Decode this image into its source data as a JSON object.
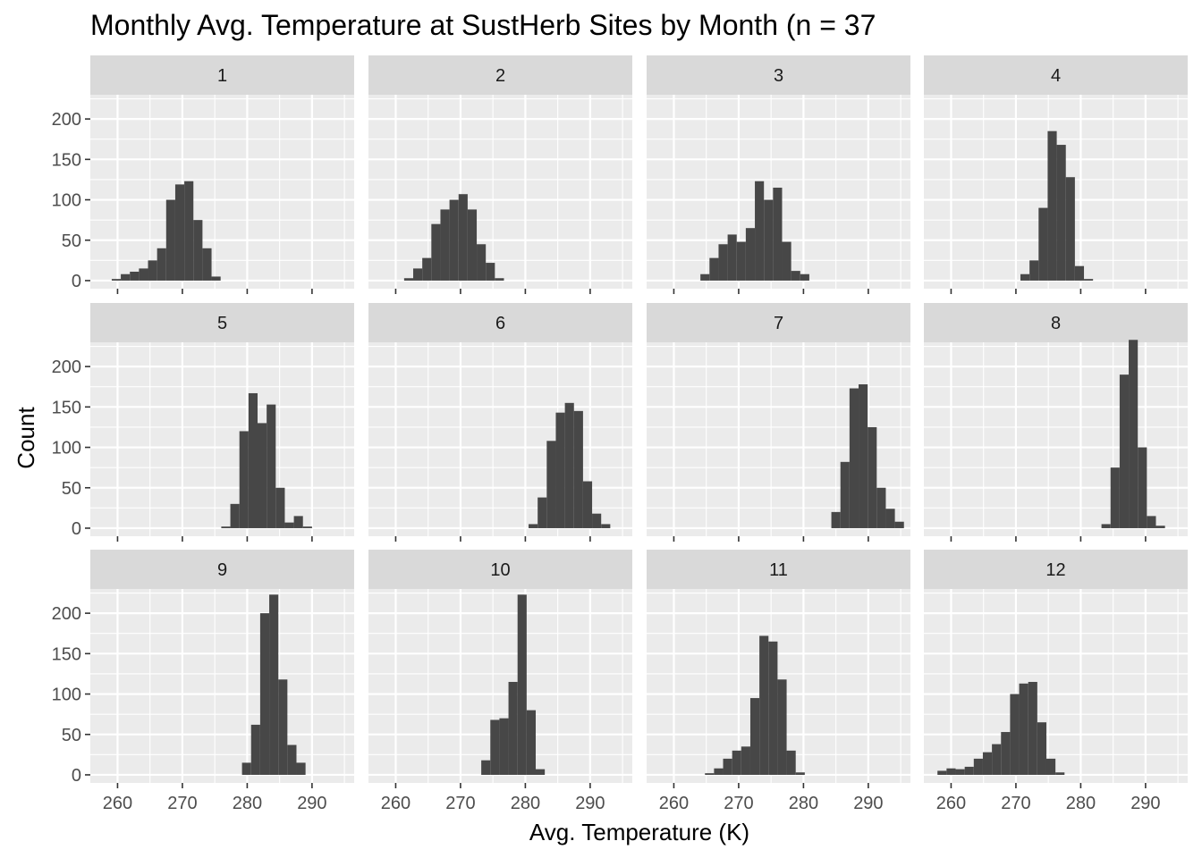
{
  "chart_data": {
    "type": "histogram",
    "title": "Monthly Avg. Temperature at SustHerb Sites by Month (n = 37",
    "xlabel": "Avg. Temperature (K)",
    "ylabel": "Count",
    "xlim": [
      255.8,
      296.5
    ],
    "ylim": [
      -10,
      230
    ],
    "x_ticks": [
      260,
      270,
      280,
      290
    ],
    "y_ticks": [
      0,
      50,
      100,
      150,
      200
    ],
    "bin_width": 1.4,
    "grid": true,
    "layout": "facet-wrap 3 rows x 4 columns",
    "colors": {
      "bar": "#474747",
      "panel_bg": "#ebebeb",
      "grid": "#ffffff",
      "strip_bg": "#d9d9d9"
    },
    "panels": [
      {
        "label": "1",
        "bins": [
          {
            "x": 259.8,
            "count": 2
          },
          {
            "x": 261.2,
            "count": 8
          },
          {
            "x": 262.6,
            "count": 11
          },
          {
            "x": 264.0,
            "count": 15
          },
          {
            "x": 265.4,
            "count": 25
          },
          {
            "x": 266.8,
            "count": 40
          },
          {
            "x": 268.2,
            "count": 100
          },
          {
            "x": 269.6,
            "count": 119
          },
          {
            "x": 271.0,
            "count": 123
          },
          {
            "x": 272.4,
            "count": 75
          },
          {
            "x": 273.8,
            "count": 40
          },
          {
            "x": 275.2,
            "count": 5
          }
        ]
      },
      {
        "label": "2",
        "bins": [
          {
            "x": 262.0,
            "count": 3
          },
          {
            "x": 263.4,
            "count": 15
          },
          {
            "x": 264.8,
            "count": 28
          },
          {
            "x": 266.2,
            "count": 70
          },
          {
            "x": 267.6,
            "count": 88
          },
          {
            "x": 269.0,
            "count": 100
          },
          {
            "x": 270.4,
            "count": 107
          },
          {
            "x": 271.8,
            "count": 88
          },
          {
            "x": 273.2,
            "count": 45
          },
          {
            "x": 274.6,
            "count": 22
          },
          {
            "x": 276.0,
            "count": 3
          }
        ]
      },
      {
        "label": "3",
        "bins": [
          {
            "x": 264.8,
            "count": 8
          },
          {
            "x": 266.2,
            "count": 28
          },
          {
            "x": 267.6,
            "count": 45
          },
          {
            "x": 269.0,
            "count": 57
          },
          {
            "x": 270.4,
            "count": 48
          },
          {
            "x": 271.8,
            "count": 65
          },
          {
            "x": 273.2,
            "count": 123
          },
          {
            "x": 274.6,
            "count": 100
          },
          {
            "x": 276.0,
            "count": 115
          },
          {
            "x": 277.4,
            "count": 48
          },
          {
            "x": 278.8,
            "count": 12
          },
          {
            "x": 280.2,
            "count": 8
          }
        ]
      },
      {
        "label": "4",
        "bins": [
          {
            "x": 271.4,
            "count": 8
          },
          {
            "x": 272.8,
            "count": 25
          },
          {
            "x": 274.2,
            "count": 90
          },
          {
            "x": 275.6,
            "count": 185
          },
          {
            "x": 277.0,
            "count": 168
          },
          {
            "x": 278.4,
            "count": 128
          },
          {
            "x": 279.8,
            "count": 18
          },
          {
            "x": 281.2,
            "count": 2
          }
        ]
      },
      {
        "label": "5",
        "bins": [
          {
            "x": 276.7,
            "count": 2
          },
          {
            "x": 278.1,
            "count": 30
          },
          {
            "x": 279.5,
            "count": 120
          },
          {
            "x": 280.9,
            "count": 167
          },
          {
            "x": 282.3,
            "count": 130
          },
          {
            "x": 283.7,
            "count": 153
          },
          {
            "x": 285.1,
            "count": 50
          },
          {
            "x": 286.5,
            "count": 7
          },
          {
            "x": 287.9,
            "count": 15
          },
          {
            "x": 289.3,
            "count": 2
          }
        ]
      },
      {
        "label": "6",
        "bins": [
          {
            "x": 281.2,
            "count": 5
          },
          {
            "x": 282.6,
            "count": 38
          },
          {
            "x": 284.0,
            "count": 108
          },
          {
            "x": 285.4,
            "count": 143
          },
          {
            "x": 286.8,
            "count": 155
          },
          {
            "x": 288.2,
            "count": 145
          },
          {
            "x": 289.6,
            "count": 58
          },
          {
            "x": 291.0,
            "count": 18
          },
          {
            "x": 292.4,
            "count": 5
          }
        ]
      },
      {
        "label": "7",
        "bins": [
          {
            "x": 285.0,
            "count": 20
          },
          {
            "x": 286.4,
            "count": 82
          },
          {
            "x": 287.8,
            "count": 173
          },
          {
            "x": 289.2,
            "count": 178
          },
          {
            "x": 290.6,
            "count": 125
          },
          {
            "x": 292.0,
            "count": 50
          },
          {
            "x": 293.4,
            "count": 24
          },
          {
            "x": 294.8,
            "count": 8
          }
        ]
      },
      {
        "label": "8",
        "bins": [
          {
            "x": 283.9,
            "count": 5
          },
          {
            "x": 285.3,
            "count": 75
          },
          {
            "x": 286.7,
            "count": 190
          },
          {
            "x": 288.1,
            "count": 233
          },
          {
            "x": 289.5,
            "count": 100
          },
          {
            "x": 290.9,
            "count": 15
          },
          {
            "x": 292.3,
            "count": 3
          }
        ]
      },
      {
        "label": "9",
        "bins": [
          {
            "x": 279.9,
            "count": 15
          },
          {
            "x": 281.3,
            "count": 62
          },
          {
            "x": 282.7,
            "count": 200
          },
          {
            "x": 284.1,
            "count": 223
          },
          {
            "x": 285.5,
            "count": 118
          },
          {
            "x": 286.9,
            "count": 37
          },
          {
            "x": 288.3,
            "count": 15
          }
        ]
      },
      {
        "label": "10",
        "bins": [
          {
            "x": 273.9,
            "count": 18
          },
          {
            "x": 275.3,
            "count": 68
          },
          {
            "x": 276.7,
            "count": 70
          },
          {
            "x": 278.1,
            "count": 115
          },
          {
            "x": 279.5,
            "count": 223
          },
          {
            "x": 280.9,
            "count": 80
          },
          {
            "x": 282.3,
            "count": 7
          }
        ]
      },
      {
        "label": "11",
        "bins": [
          {
            "x": 265.5,
            "count": 2
          },
          {
            "x": 266.9,
            "count": 8
          },
          {
            "x": 268.3,
            "count": 20
          },
          {
            "x": 269.7,
            "count": 30
          },
          {
            "x": 271.1,
            "count": 35
          },
          {
            "x": 272.5,
            "count": 95
          },
          {
            "x": 273.9,
            "count": 172
          },
          {
            "x": 275.3,
            "count": 165
          },
          {
            "x": 276.7,
            "count": 118
          },
          {
            "x": 278.1,
            "count": 30
          },
          {
            "x": 279.5,
            "count": 3
          }
        ]
      },
      {
        "label": "12",
        "bins": [
          {
            "x": 258.6,
            "count": 5
          },
          {
            "x": 260.0,
            "count": 8
          },
          {
            "x": 261.4,
            "count": 7
          },
          {
            "x": 262.8,
            "count": 10
          },
          {
            "x": 264.2,
            "count": 20
          },
          {
            "x": 265.6,
            "count": 28
          },
          {
            "x": 267.0,
            "count": 38
          },
          {
            "x": 268.4,
            "count": 53
          },
          {
            "x": 269.8,
            "count": 100
          },
          {
            "x": 271.2,
            "count": 113
          },
          {
            "x": 272.6,
            "count": 115
          },
          {
            "x": 274.0,
            "count": 65
          },
          {
            "x": 275.4,
            "count": 20
          },
          {
            "x": 276.8,
            "count": 3
          }
        ]
      }
    ]
  }
}
